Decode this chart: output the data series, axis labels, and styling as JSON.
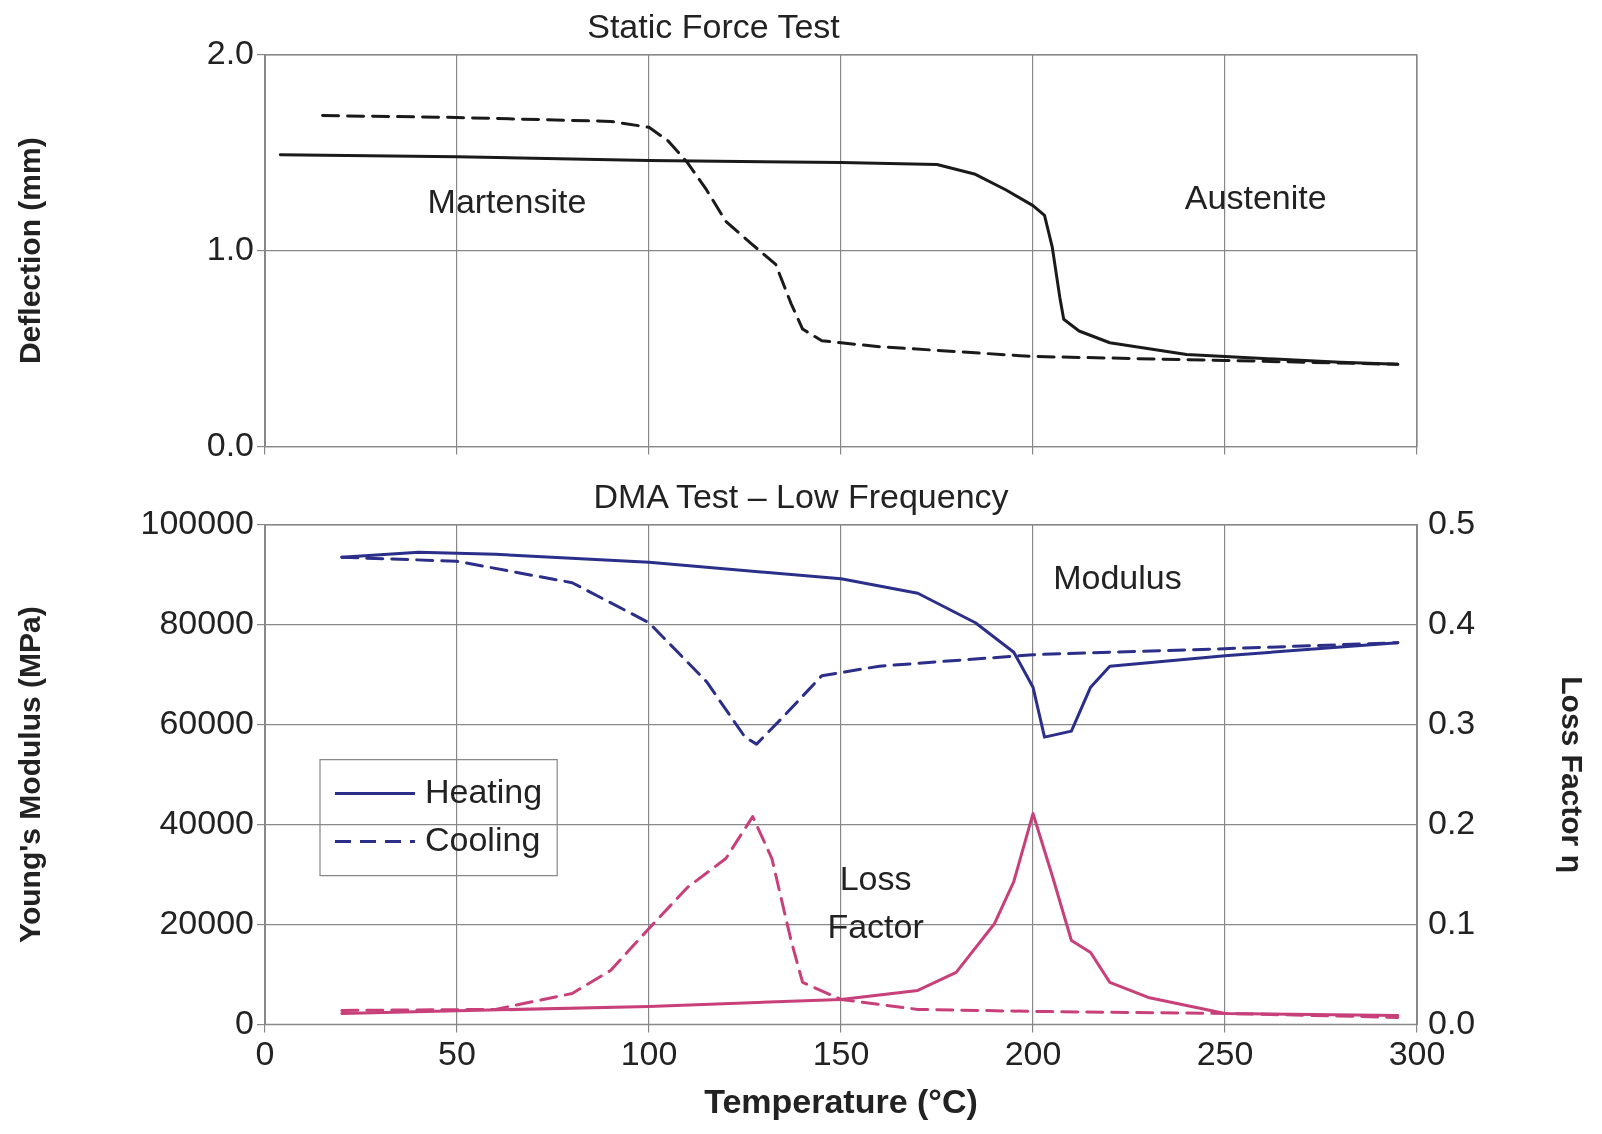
{
  "chart_data": [
    {
      "type": "line",
      "title": "Static Force Test",
      "ylabel": "Deflection (mm)",
      "xlim": [
        0,
        300
      ],
      "xticks": [
        0,
        50,
        100,
        150,
        200,
        250,
        300
      ],
      "ylim": [
        0,
        2
      ],
      "yticks": [
        {
          "value": 0,
          "label": "0.0"
        },
        {
          "value": 1,
          "label": "1.0"
        },
        {
          "value": 2,
          "label": "2.0"
        }
      ],
      "grid": true,
      "tick_labels": "y",
      "legend": false,
      "marker": "none",
      "series": [
        {
          "color": "#1a1a1a",
          "line_style": "solid",
          "x": [
            4,
            50,
            100,
            150,
            175,
            185,
            193,
            200,
            203,
            205,
            207,
            208,
            212,
            220,
            240,
            260,
            280,
            295
          ],
          "values": [
            1.49,
            1.48,
            1.46,
            1.45,
            1.44,
            1.39,
            1.31,
            1.23,
            1.18,
            1.02,
            0.76,
            0.65,
            0.59,
            0.53,
            0.47,
            0.45,
            0.43,
            0.42
          ]
        },
        {
          "color": "#1a1a1a",
          "line_style": "dashed",
          "x": [
            15,
            50,
            90,
            100,
            105,
            110,
            115,
            120,
            127,
            133,
            137,
            140,
            145,
            160,
            200,
            250,
            295
          ],
          "values": [
            1.69,
            1.68,
            1.66,
            1.63,
            1.56,
            1.45,
            1.31,
            1.15,
            1.03,
            0.93,
            0.73,
            0.6,
            0.54,
            0.51,
            0.46,
            0.44,
            0.42
          ]
        }
      ],
      "annotations": [
        "Martensite",
        "Austenite"
      ]
    },
    {
      "type": "line",
      "title": "DMA Test – Low Frequency",
      "xlabel": "Temperature (°C)",
      "ylabel": "Young's Modulus (MPa)",
      "y2label": "Loss Factor η",
      "xlim": [
        0,
        300
      ],
      "xticks": [
        0,
        50,
        100,
        150,
        200,
        250,
        300
      ],
      "ylim": [
        0,
        100000
      ],
      "yticks": [
        0,
        20000,
        40000,
        60000,
        80000,
        100000
      ],
      "y2lim": [
        0,
        0.5
      ],
      "y2ticks": [
        {
          "value": 0,
          "label": "0.0"
        },
        {
          "value": 0.1,
          "label": "0.1"
        },
        {
          "value": 0.2,
          "label": "0.2"
        },
        {
          "value": 0.3,
          "label": "0.3"
        },
        {
          "value": 0.4,
          "label": "0.4"
        },
        {
          "value": 0.5,
          "label": "0.5"
        }
      ],
      "grid": true,
      "legend": "left",
      "marker": "none",
      "series": [
        {
          "name": "Heating",
          "color": "#2b2f8a",
          "line_style": "solid",
          "x": [
            20,
            40,
            60,
            100,
            150,
            170,
            185,
            195,
            200,
            203,
            210,
            215,
            220,
            250,
            295
          ],
          "values": [
            93500,
            94500,
            94100,
            92500,
            89200,
            86300,
            80400,
            74500,
            67500,
            57500,
            58700,
            67500,
            71700,
            73800,
            76400
          ]
        },
        {
          "name": "Cooling",
          "color": "#2b2f8a",
          "line_style": "dashed",
          "x": [
            20,
            50,
            80,
            100,
            115,
            125,
            128,
            135,
            145,
            160,
            200,
            250,
            295
          ],
          "values": [
            93500,
            92700,
            88400,
            80400,
            68600,
            57500,
            56100,
            61600,
            69800,
            71700,
            74000,
            75200,
            76400
          ]
        },
        {
          "color": "#c8407a",
          "line_style": "solid",
          "axis": "y2",
          "x": [
            20,
            100,
            150,
            170,
            180,
            190,
            195,
            200,
            205,
            210,
            215,
            220,
            230,
            240,
            250,
            295
          ],
          "values": [
            0.011,
            0.018,
            0.025,
            0.034,
            0.052,
            0.101,
            0.143,
            0.211,
            0.149,
            0.084,
            0.072,
            0.042,
            0.027,
            0.019,
            0.011,
            0.009
          ]
        },
        {
          "color": "#c8407a",
          "line_style": "dashed",
          "axis": "y2",
          "x": [
            20,
            60,
            80,
            90,
            100,
            110,
            120,
            127,
            132,
            137,
            140,
            150,
            170,
            200,
            250,
            295
          ],
          "values": [
            0.014,
            0.015,
            0.031,
            0.054,
            0.096,
            0.137,
            0.166,
            0.208,
            0.166,
            0.084,
            0.042,
            0.025,
            0.015,
            0.013,
            0.011,
            0.007
          ]
        }
      ],
      "annotations": [
        "Modulus",
        "Loss Factor"
      ]
    }
  ]
}
